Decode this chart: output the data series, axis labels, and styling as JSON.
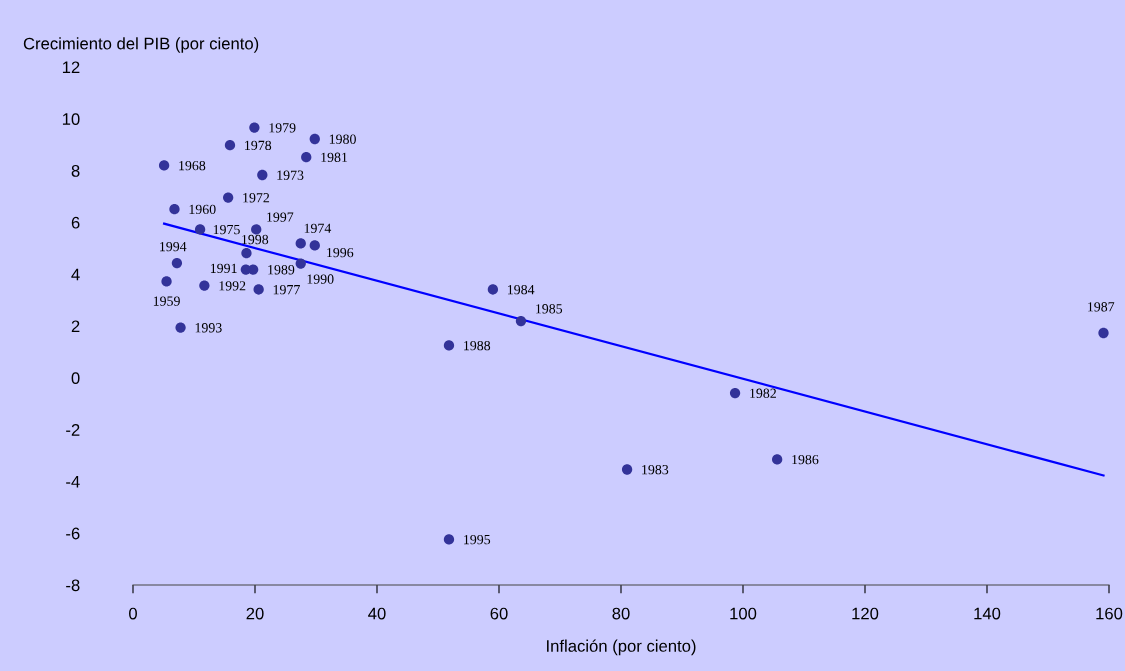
{
  "chart_data": {
    "type": "scatter",
    "xlabel": "Inflación (por ciento)",
    "ylabel": "Crecimiento del PIB (por ciento)",
    "xlim": [
      0,
      160
    ],
    "xticks": [
      0,
      20,
      40,
      60,
      80,
      100,
      120,
      140,
      160
    ],
    "ylim": [
      -8,
      12
    ],
    "yticks": [
      -8,
      -6,
      -4,
      -2,
      0,
      2,
      4,
      6,
      8,
      10,
      12
    ],
    "grid": false,
    "legend": false,
    "marker": "circle",
    "series": [
      {
        "color": "#333399",
        "x": [
          5.5,
          6.8,
          5.1,
          15.6,
          21.2,
          27.5,
          11.0,
          20.6,
          15.9,
          19.9,
          29.8,
          28.4,
          98.7,
          81.0,
          59.0,
          63.6,
          105.6,
          159.1,
          51.8,
          19.7,
          27.5,
          18.5,
          11.7,
          7.8,
          7.2,
          51.8,
          29.8,
          20.2,
          18.6
        ],
        "values": [
          3.72,
          6.51,
          8.2,
          6.96,
          7.83,
          5.19,
          5.73,
          3.41,
          8.98,
          9.66,
          9.22,
          8.52,
          -0.59,
          -3.54,
          3.41,
          2.19,
          -3.15,
          1.73,
          1.25,
          4.18,
          4.41,
          4.18,
          3.56,
          1.94,
          4.43,
          -6.24,
          5.11,
          5.73,
          4.81
        ]
      },
      {
        "type": "line",
        "color": "#0000ff",
        "line_style": "solid",
        "marker": "none",
        "x": [
          5.1,
          159.1
        ],
        "values": [
          5.95,
          -3.77
        ]
      }
    ],
    "annotations": [
      {
        "text": "1959",
        "x": 5.5,
        "y": 3.72
      },
      {
        "text": "1960",
        "x": 6.8,
        "y": 6.51
      },
      {
        "text": "1968",
        "x": 5.1,
        "y": 8.2
      },
      {
        "text": "1972",
        "x": 15.6,
        "y": 6.96
      },
      {
        "text": "1973",
        "x": 21.2,
        "y": 7.83
      },
      {
        "text": "1974",
        "x": 27.5,
        "y": 5.19
      },
      {
        "text": "1975",
        "x": 11.0,
        "y": 5.73
      },
      {
        "text": "1977",
        "x": 20.6,
        "y": 3.41
      },
      {
        "text": "1978",
        "x": 15.9,
        "y": 8.98
      },
      {
        "text": "1979",
        "x": 19.9,
        "y": 9.66
      },
      {
        "text": "1980",
        "x": 29.8,
        "y": 9.22
      },
      {
        "text": "1981",
        "x": 28.4,
        "y": 8.52
      },
      {
        "text": "1982",
        "x": 98.7,
        "y": -0.59
      },
      {
        "text": "1983",
        "x": 81.0,
        "y": -3.54
      },
      {
        "text": "1984",
        "x": 59.0,
        "y": 3.41
      },
      {
        "text": "1985",
        "x": 63.6,
        "y": 2.19
      },
      {
        "text": "1986",
        "x": 105.6,
        "y": -3.15
      },
      {
        "text": "1987",
        "x": 159.1,
        "y": 1.73
      },
      {
        "text": "1988",
        "x": 51.8,
        "y": 1.25
      },
      {
        "text": "1989",
        "x": 19.7,
        "y": 4.18
      },
      {
        "text": "1990",
        "x": 27.5,
        "y": 4.41
      },
      {
        "text": "1991",
        "x": 18.5,
        "y": 4.18
      },
      {
        "text": "1992",
        "x": 11.7,
        "y": 3.56
      },
      {
        "text": "1993",
        "x": 7.8,
        "y": 1.94
      },
      {
        "text": "1994",
        "x": 7.2,
        "y": 4.43
      },
      {
        "text": "1995",
        "x": 51.8,
        "y": -6.24
      },
      {
        "text": "1996",
        "x": 29.8,
        "y": 5.11
      },
      {
        "text": "1997",
        "x": 20.2,
        "y": 5.73
      },
      {
        "text": "1998",
        "x": 18.6,
        "y": 4.81
      }
    ]
  }
}
